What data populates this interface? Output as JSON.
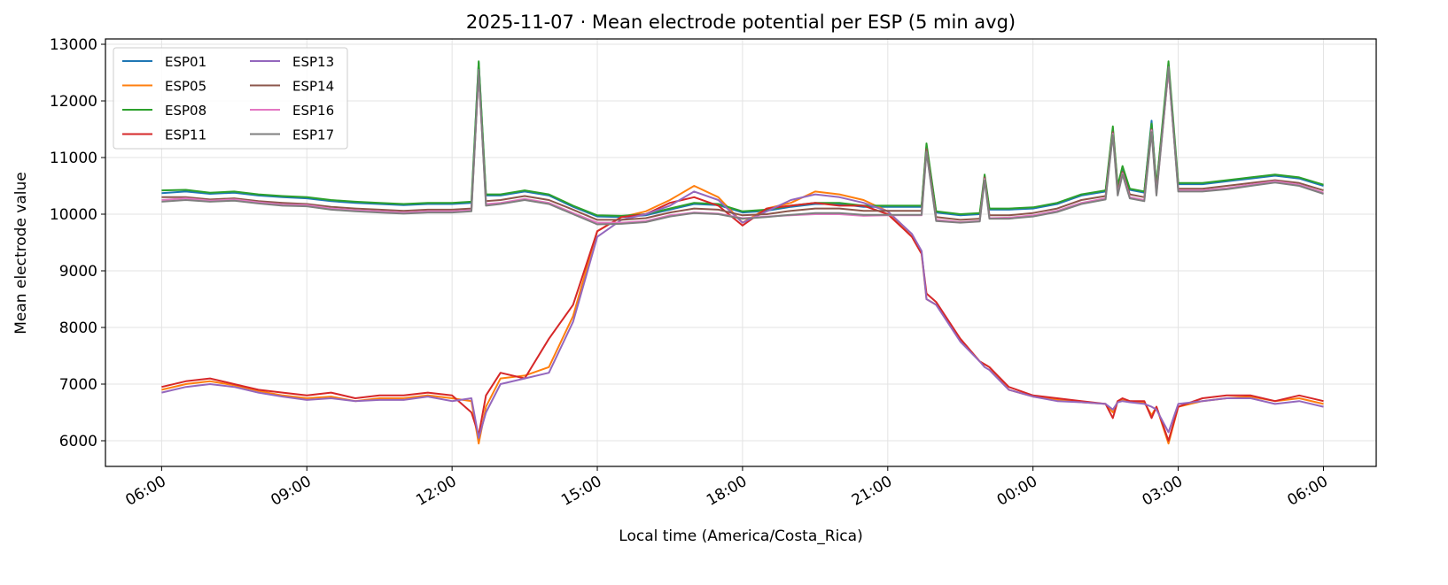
{
  "chart_data": {
    "type": "line",
    "title": "2025-11-07 · Mean electrode potential per ESP (5 min avg)",
    "x_label": "Local time (America/Costa_Rica)",
    "y_label": "Mean electrode value",
    "x": [
      6,
      6.5,
      7,
      7.5,
      8,
      8.5,
      9,
      9.5,
      10,
      10.5,
      11,
      11.5,
      12,
      12.4,
      12.55,
      12.7,
      13,
      13.5,
      14,
      14.5,
      15,
      15.5,
      16,
      16.5,
      17,
      17.5,
      18,
      18.5,
      19,
      19.5,
      20,
      20.5,
      21,
      21.5,
      21.7,
      21.8,
      22,
      22.5,
      22.9,
      23,
      23.1,
      23.5,
      24,
      24.5,
      25,
      25.5,
      25.65,
      25.75,
      25.85,
      26,
      26.3,
      26.45,
      26.55,
      26.8,
      27,
      27.5,
      28,
      28.5,
      29,
      29.5,
      30
    ],
    "xlim": [
      4.84,
      31.09
    ],
    "xticks": [
      {
        "value": 6,
        "label": "06:00"
      },
      {
        "value": 9,
        "label": "09:00"
      },
      {
        "value": 12,
        "label": "12:00"
      },
      {
        "value": 15,
        "label": "15:00"
      },
      {
        "value": 18,
        "label": "18:00"
      },
      {
        "value": 21,
        "label": "21:00"
      },
      {
        "value": 24,
        "label": "00:00"
      },
      {
        "value": 27,
        "label": "03:00"
      },
      {
        "value": 30,
        "label": "06:00"
      }
    ],
    "ylim": [
      5547,
      13094
    ],
    "yticks": [
      6000,
      7000,
      8000,
      9000,
      10000,
      11000,
      12000,
      13000
    ],
    "grid": true,
    "legend": "upper left",
    "series": [
      {
        "name": "ESP01",
        "color": "#1f77b4",
        "values": [
          10370,
          10400,
          10360,
          10380,
          10330,
          10300,
          10280,
          10230,
          10200,
          10180,
          10160,
          10180,
          10180,
          10200,
          12680,
          10330,
          10330,
          10400,
          10330,
          10130,
          9960,
          9950,
          9980,
          10080,
          10180,
          10160,
          10030,
          10060,
          10130,
          10180,
          10180,
          10130,
          10130,
          10130,
          10130,
          11200,
          10030,
          9980,
          10000,
          10650,
          10080,
          10080,
          10100,
          10180,
          10330,
          10400,
          11500,
          10480,
          10800,
          10430,
          10380,
          11650,
          10480,
          12600,
          10530,
          10530,
          10580,
          10630,
          10680,
          10630,
          10500
        ]
      },
      {
        "name": "ESP05",
        "color": "#ff7f0e",
        "values": [
          6900,
          7000,
          7050,
          6980,
          6880,
          6800,
          6750,
          6780,
          6700,
          6750,
          6750,
          6800,
          6750,
          6700,
          5950,
          6600,
          7100,
          7150,
          7300,
          8200,
          9700,
          9950,
          10050,
          10250,
          10500,
          10300,
          9850,
          10100,
          10200,
          10400,
          10350,
          10250,
          10050,
          9600,
          9300,
          8500,
          8400,
          7800,
          7400,
          7350,
          7300,
          6900,
          6780,
          6720,
          6680,
          6650,
          6500,
          6700,
          6720,
          6700,
          6680,
          6450,
          6600,
          5950,
          6600,
          6700,
          6750,
          6780,
          6700,
          6750,
          6650
        ]
      },
      {
        "name": "ESP08",
        "color": "#2ca02c",
        "values": [
          10420,
          10430,
          10380,
          10400,
          10350,
          10320,
          10300,
          10250,
          10220,
          10200,
          10180,
          10200,
          10200,
          10220,
          12700,
          10350,
          10350,
          10420,
          10350,
          10150,
          9980,
          9970,
          10000,
          10100,
          10200,
          10180,
          10050,
          10080,
          10150,
          10200,
          10200,
          10150,
          10150,
          10150,
          10150,
          11250,
          10050,
          10000,
          10020,
          10700,
          10100,
          10100,
          10120,
          10200,
          10350,
          10420,
          11550,
          10500,
          10850,
          10450,
          10400,
          11600,
          10500,
          12700,
          10550,
          10550,
          10600,
          10650,
          10700,
          10650,
          10520
        ]
      },
      {
        "name": "ESP11",
        "color": "#d62728",
        "values": [
          6950,
          7050,
          7100,
          7000,
          6900,
          6850,
          6800,
          6850,
          6750,
          6800,
          6800,
          6850,
          6800,
          6500,
          6100,
          6800,
          7200,
          7100,
          7800,
          8400,
          9700,
          9950,
          10000,
          10200,
          10300,
          10150,
          9800,
          10100,
          10150,
          10200,
          10150,
          10150,
          10000,
          9600,
          9300,
          8600,
          8450,
          7800,
          7400,
          7350,
          7300,
          6950,
          6800,
          6750,
          6700,
          6650,
          6400,
          6700,
          6750,
          6700,
          6700,
          6400,
          6600,
          6000,
          6600,
          6750,
          6800,
          6800,
          6700,
          6800,
          6700
        ]
      },
      {
        "name": "ESP13",
        "color": "#9467bd",
        "values": [
          6850,
          6950,
          7000,
          6950,
          6850,
          6780,
          6720,
          6750,
          6700,
          6720,
          6720,
          6780,
          6700,
          6750,
          6050,
          6500,
          7000,
          7100,
          7200,
          8100,
          9600,
          9900,
          10000,
          10150,
          10400,
          10250,
          9850,
          10050,
          10250,
          10350,
          10300,
          10200,
          10050,
          9650,
          9350,
          8500,
          8400,
          7750,
          7400,
          7300,
          7250,
          6900,
          6780,
          6700,
          6680,
          6650,
          6550,
          6680,
          6700,
          6680,
          6650,
          6600,
          6550,
          6150,
          6650,
          6700,
          6750,
          6750,
          6650,
          6700,
          6600
        ]
      },
      {
        "name": "ESP14",
        "color": "#8c564b",
        "values": [
          10300,
          10300,
          10260,
          10280,
          10230,
          10200,
          10180,
          10130,
          10100,
          10080,
          10060,
          10080,
          10080,
          10100,
          12500,
          10230,
          10250,
          10320,
          10250,
          10080,
          9900,
          9900,
          9930,
          10030,
          10100,
          10080,
          9980,
          10000,
          10060,
          10100,
          10100,
          10060,
          10060,
          10060,
          10060,
          11150,
          9950,
          9900,
          9920,
          10650,
          9980,
          9980,
          10020,
          10100,
          10250,
          10320,
          11450,
          10400,
          10750,
          10350,
          10300,
          11500,
          10400,
          12550,
          10450,
          10450,
          10500,
          10550,
          10600,
          10550,
          10420
        ]
      },
      {
        "name": "ESP16",
        "color": "#e377c2",
        "values": [
          10250,
          10280,
          10240,
          10260,
          10210,
          10170,
          10160,
          10100,
          10070,
          10050,
          10030,
          10050,
          10050,
          10070,
          12500,
          10180,
          10200,
          10270,
          10200,
          10020,
          9850,
          9850,
          9880,
          9980,
          10030,
          10010,
          9930,
          9960,
          9980,
          10000,
          10000,
          9970,
          9980,
          9980,
          9980,
          11100,
          9900,
          9860,
          9880,
          10620,
          9930,
          9940,
          9980,
          10060,
          10200,
          10280,
          11420,
          10350,
          10720,
          10300,
          10250,
          11480,
          10350,
          12550,
          10420,
          10420,
          10460,
          10520,
          10580,
          10520,
          10380
        ]
      },
      {
        "name": "ESP17",
        "color": "#7f7f7f",
        "values": [
          10220,
          10250,
          10220,
          10240,
          10190,
          10150,
          10140,
          10080,
          10050,
          10030,
          10010,
          10030,
          10030,
          10050,
          12550,
          10150,
          10180,
          10250,
          10180,
          10000,
          9820,
          9830,
          9860,
          9960,
          10020,
          10000,
          9920,
          9950,
          9990,
          10020,
          10020,
          9990,
          9990,
          9990,
          9990,
          11100,
          9880,
          9850,
          9870,
          10600,
          9920,
          9920,
          9960,
          10040,
          10180,
          10260,
          11400,
          10330,
          10700,
          10280,
          10230,
          11450,
          10330,
          12600,
          10400,
          10400,
          10440,
          10500,
          10560,
          10500,
          10360
        ]
      }
    ]
  }
}
